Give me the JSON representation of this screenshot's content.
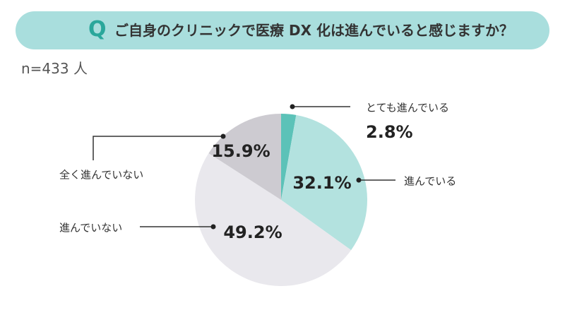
{
  "header": {
    "q_mark": "Q",
    "question": "ご自身のクリニックで医療 DX 化は進んでいると感じますか？"
  },
  "sample": "n=433 人",
  "chart_data": {
    "type": "pie",
    "title": "",
    "slices": [
      {
        "label": "とても進んでいる",
        "value": 2.8,
        "display": "2.8%",
        "color": "#5cc2b8"
      },
      {
        "label": "進んでいる",
        "value": 32.1,
        "display": "32.1%",
        "color": "#b3e2df"
      },
      {
        "label": "進んでいない",
        "value": 49.2,
        "display": "49.2%",
        "color": "#e9e8ed"
      },
      {
        "label": "全く進んでいない",
        "value": 15.9,
        "display": "15.9%",
        "color": "#cdcbd1"
      }
    ]
  }
}
